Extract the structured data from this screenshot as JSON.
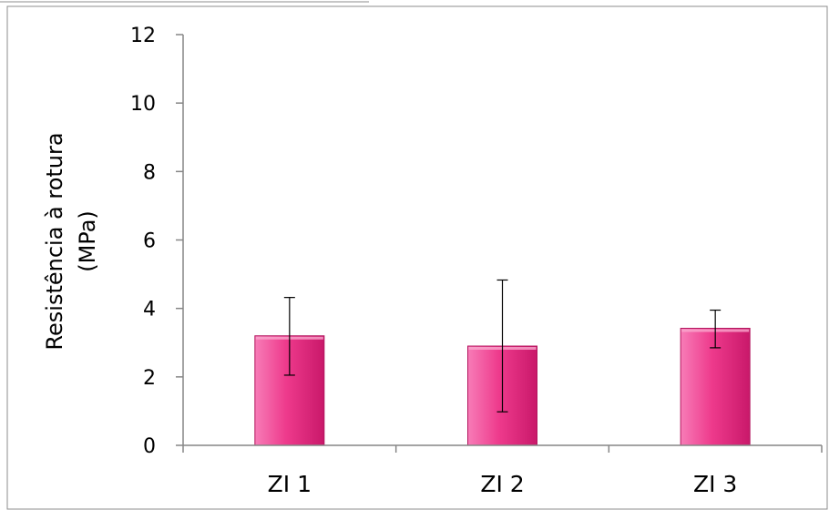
{
  "chart_data": {
    "type": "bar",
    "title": "",
    "xlabel": "",
    "ylabel_lines": [
      "Resistência à rotura",
      "(MPa)"
    ],
    "categories": [
      "ZI 1",
      "ZI 2",
      "ZI 3"
    ],
    "values": [
      3.2,
      2.9,
      3.42
    ],
    "error_low": [
      2.05,
      0.98,
      2.85
    ],
    "error_high": [
      4.32,
      4.83,
      3.95
    ],
    "ylim": [
      0,
      12
    ],
    "yticks": [
      "0",
      "2",
      "4",
      "6",
      "8",
      "10",
      "12"
    ],
    "grid": false,
    "legend": "none",
    "bar_color": "#ee3a8c",
    "bar_color_light": "#f77cb7",
    "bar_color_dark": "#c9186a"
  }
}
